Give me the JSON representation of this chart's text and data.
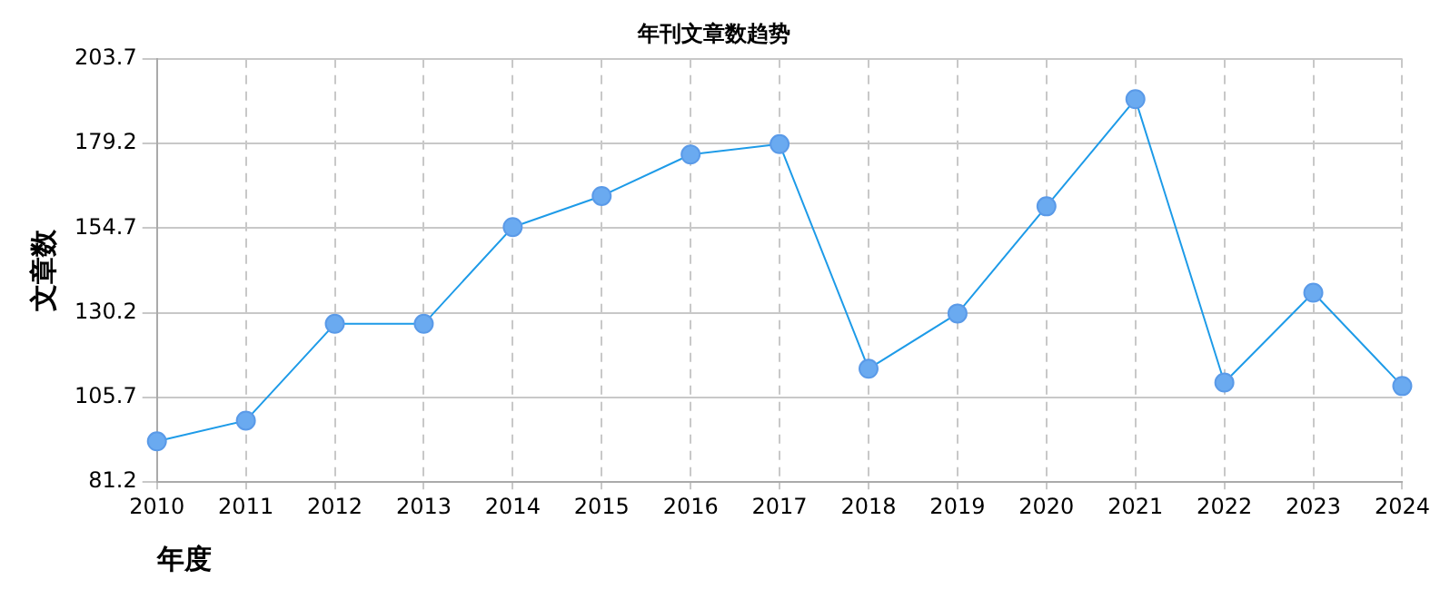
{
  "chart_data": {
    "type": "line",
    "title": "年刊文章数趋势",
    "xlabel": "年度",
    "ylabel": "文章数",
    "categories": [
      "2010",
      "2011",
      "2012",
      "2013",
      "2014",
      "2015",
      "2016",
      "2017",
      "2018",
      "2019",
      "2020",
      "2021",
      "2022",
      "2023",
      "2024"
    ],
    "series": [
      {
        "color": "#1e9be8",
        "values": [
          93,
          99,
          127,
          127,
          155,
          164,
          176,
          179,
          114,
          130,
          161,
          192,
          110,
          136,
          109
        ]
      }
    ],
    "ylim": [
      81.2,
      203.7
    ],
    "yticks": [
      81.2,
      105.7,
      130.2,
      154.7,
      179.2,
      203.7
    ],
    "grid": true,
    "marker": "circle",
    "line_style": "solid",
    "legend": false
  }
}
